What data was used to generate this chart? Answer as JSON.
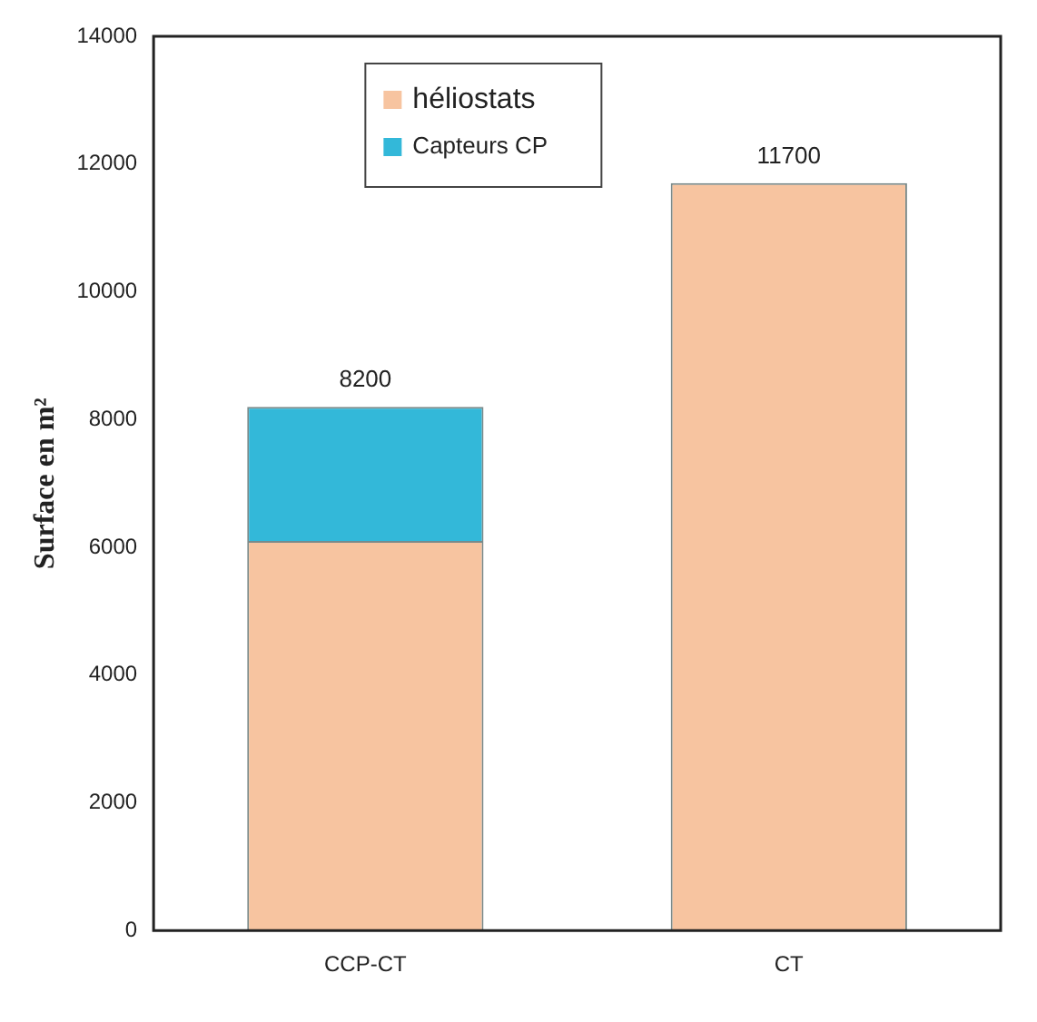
{
  "chart_data": {
    "type": "bar",
    "ylabel": "Surface en m²",
    "categories": [
      "CCP-CT",
      "CT"
    ],
    "stacked": true,
    "series": [
      {
        "name": "héliostats",
        "color": "#f7c4a0",
        "values": [
          6100,
          11700
        ]
      },
      {
        "name": "Capteurs CP",
        "color": "#33b8d9",
        "values": [
          2100,
          null
        ]
      }
    ],
    "totals": [
      "8200",
      "11700"
    ],
    "ylim": [
      0,
      14000
    ],
    "yticks": [
      0,
      2000,
      4000,
      6000,
      8000,
      10000,
      12000,
      14000
    ],
    "grid": false,
    "legend": "top"
  }
}
